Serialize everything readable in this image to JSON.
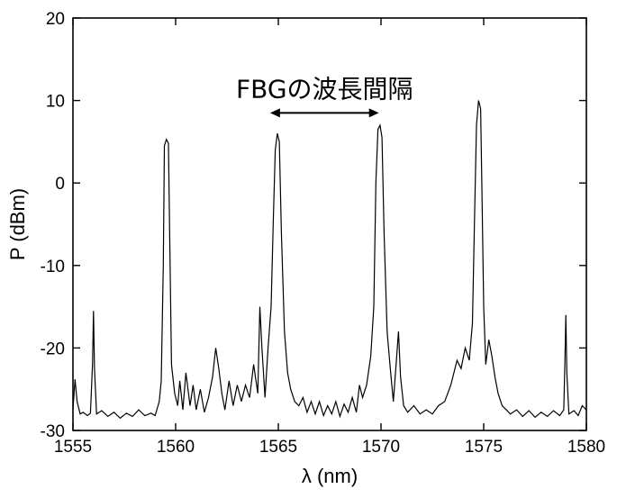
{
  "chart_data": {
    "type": "line",
    "title": "",
    "xlabel": "λ (nm)",
    "ylabel": "P  (dBm)",
    "xlim": [
      1555,
      1580
    ],
    "ylim": [
      -30,
      20
    ],
    "xticks": [
      1555,
      1560,
      1565,
      1570,
      1575,
      1580
    ],
    "yticks": [
      -30,
      -20,
      -10,
      0,
      10,
      20
    ],
    "xtick_labels": [
      "1555",
      "1560",
      "1565",
      "1570",
      "1575",
      "1580"
    ],
    "ytick_labels": [
      "-30",
      "-20",
      "-10",
      "0",
      "10",
      "20"
    ],
    "grid": false,
    "legend": "none",
    "line_color": "#000000",
    "annotation": {
      "text": "FBGの波長間隔",
      "arrow_from_x": 1564.6,
      "arrow_to_x": 1569.9,
      "arrow_y": 8.5
    },
    "series": [
      {
        "points": [
          [
            1555.0,
            -27.5
          ],
          [
            1555.1,
            -23.8
          ],
          [
            1555.2,
            -26.5
          ],
          [
            1555.35,
            -28.0
          ],
          [
            1555.5,
            -27.8
          ],
          [
            1555.7,
            -28.2
          ],
          [
            1555.85,
            -27.9
          ],
          [
            1555.95,
            -22.0
          ],
          [
            1556.0,
            -15.5
          ],
          [
            1556.05,
            -22.5
          ],
          [
            1556.15,
            -28.0
          ],
          [
            1556.4,
            -27.6
          ],
          [
            1556.7,
            -28.3
          ],
          [
            1557.0,
            -27.8
          ],
          [
            1557.3,
            -28.5
          ],
          [
            1557.6,
            -27.9
          ],
          [
            1557.9,
            -28.3
          ],
          [
            1558.2,
            -27.5
          ],
          [
            1558.5,
            -28.2
          ],
          [
            1558.8,
            -27.9
          ],
          [
            1559.0,
            -28.2
          ],
          [
            1559.2,
            -26.5
          ],
          [
            1559.3,
            -24.0
          ],
          [
            1559.4,
            -10.0
          ],
          [
            1559.45,
            4.5
          ],
          [
            1559.55,
            5.3
          ],
          [
            1559.65,
            4.8
          ],
          [
            1559.72,
            -8.0
          ],
          [
            1559.8,
            -22.0
          ],
          [
            1559.95,
            -25.5
          ],
          [
            1560.1,
            -27.0
          ],
          [
            1560.2,
            -24.0
          ],
          [
            1560.35,
            -27.5
          ],
          [
            1560.5,
            -23.0
          ],
          [
            1560.7,
            -27.0
          ],
          [
            1560.85,
            -24.5
          ],
          [
            1561.0,
            -27.5
          ],
          [
            1561.2,
            -25.0
          ],
          [
            1561.4,
            -27.8
          ],
          [
            1561.6,
            -26.0
          ],
          [
            1561.8,
            -23.5
          ],
          [
            1561.95,
            -20.0
          ],
          [
            1562.1,
            -22.5
          ],
          [
            1562.25,
            -25.5
          ],
          [
            1562.4,
            -27.5
          ],
          [
            1562.6,
            -24.0
          ],
          [
            1562.8,
            -27.0
          ],
          [
            1563.0,
            -24.5
          ],
          [
            1563.2,
            -26.5
          ],
          [
            1563.4,
            -24.5
          ],
          [
            1563.6,
            -26.0
          ],
          [
            1563.8,
            -22.0
          ],
          [
            1564.0,
            -25.5
          ],
          [
            1564.1,
            -15.0
          ],
          [
            1564.2,
            -20.0
          ],
          [
            1564.35,
            -26.0
          ],
          [
            1564.5,
            -20.0
          ],
          [
            1564.65,
            -15.0
          ],
          [
            1564.75,
            -5.0
          ],
          [
            1564.85,
            4.0
          ],
          [
            1564.95,
            6.0
          ],
          [
            1565.05,
            5.0
          ],
          [
            1565.15,
            -6.0
          ],
          [
            1565.3,
            -18.0
          ],
          [
            1565.45,
            -23.0
          ],
          [
            1565.6,
            -25.0
          ],
          [
            1565.8,
            -26.5
          ],
          [
            1566.0,
            -27.0
          ],
          [
            1566.2,
            -26.0
          ],
          [
            1566.4,
            -27.8
          ],
          [
            1566.6,
            -26.5
          ],
          [
            1566.8,
            -28.0
          ],
          [
            1567.0,
            -26.5
          ],
          [
            1567.2,
            -28.2
          ],
          [
            1567.4,
            -27.0
          ],
          [
            1567.6,
            -28.0
          ],
          [
            1567.8,
            -26.5
          ],
          [
            1568.0,
            -28.3
          ],
          [
            1568.2,
            -26.8
          ],
          [
            1568.4,
            -27.8
          ],
          [
            1568.6,
            -26.0
          ],
          [
            1568.8,
            -27.8
          ],
          [
            1568.95,
            -24.5
          ],
          [
            1569.1,
            -26.0
          ],
          [
            1569.3,
            -24.5
          ],
          [
            1569.5,
            -21.0
          ],
          [
            1569.65,
            -15.0
          ],
          [
            1569.75,
            0.0
          ],
          [
            1569.85,
            6.5
          ],
          [
            1569.95,
            7.0
          ],
          [
            1570.05,
            5.5
          ],
          [
            1570.15,
            -6.0
          ],
          [
            1570.3,
            -18.0
          ],
          [
            1570.45,
            -22.5
          ],
          [
            1570.6,
            -26.5
          ],
          [
            1570.75,
            -21.5
          ],
          [
            1570.85,
            -18.0
          ],
          [
            1570.95,
            -23.5
          ],
          [
            1571.1,
            -27.0
          ],
          [
            1571.3,
            -27.8
          ],
          [
            1571.6,
            -27.0
          ],
          [
            1571.9,
            -28.0
          ],
          [
            1572.2,
            -27.5
          ],
          [
            1572.5,
            -28.0
          ],
          [
            1572.8,
            -27.0
          ],
          [
            1573.1,
            -26.5
          ],
          [
            1573.4,
            -24.5
          ],
          [
            1573.7,
            -21.5
          ],
          [
            1573.9,
            -22.5
          ],
          [
            1574.1,
            -20.0
          ],
          [
            1574.3,
            -21.5
          ],
          [
            1574.45,
            -17.0
          ],
          [
            1574.55,
            -5.0
          ],
          [
            1574.65,
            7.0
          ],
          [
            1574.75,
            10.0
          ],
          [
            1574.85,
            9.0
          ],
          [
            1574.92,
            -2.0
          ],
          [
            1575.0,
            -15.0
          ],
          [
            1575.1,
            -22.0
          ],
          [
            1575.25,
            -19.0
          ],
          [
            1575.4,
            -21.0
          ],
          [
            1575.55,
            -23.5
          ],
          [
            1575.7,
            -25.5
          ],
          [
            1575.9,
            -27.0
          ],
          [
            1576.1,
            -27.5
          ],
          [
            1576.3,
            -28.0
          ],
          [
            1576.6,
            -27.5
          ],
          [
            1576.9,
            -28.3
          ],
          [
            1577.2,
            -27.6
          ],
          [
            1577.5,
            -28.4
          ],
          [
            1577.8,
            -27.8
          ],
          [
            1578.1,
            -28.3
          ],
          [
            1578.4,
            -27.6
          ],
          [
            1578.7,
            -28.2
          ],
          [
            1578.9,
            -27.5
          ],
          [
            1578.95,
            -22.0
          ],
          [
            1579.0,
            -16.0
          ],
          [
            1579.05,
            -23.0
          ],
          [
            1579.15,
            -28.0
          ],
          [
            1579.4,
            -27.6
          ],
          [
            1579.6,
            -28.2
          ],
          [
            1579.8,
            -27.0
          ],
          [
            1580.0,
            -27.5
          ]
        ]
      }
    ]
  }
}
